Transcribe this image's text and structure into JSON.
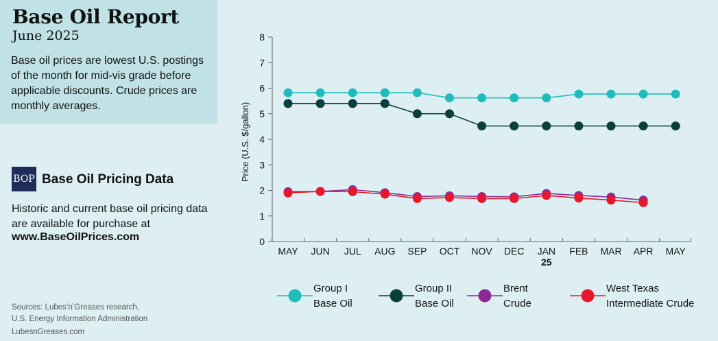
{
  "header": {
    "title": "Base Oil Report",
    "subtitle": "June 2025",
    "description": "Base oil prices are lowest U.S. postings of the month for mid-vis grade before applicable discounts. Crude prices are monthly averages."
  },
  "promo": {
    "badge": "BOP",
    "heading": "Base Oil Pricing Data",
    "text": "Historic and current base oil pricing data are available for purchase at",
    "url": "www.BaseOilPrices.com"
  },
  "footer": {
    "sources_line1": "Sources: Lubes’n’Greases research,",
    "sources_line2": "U.S. Energy Information Administration",
    "site": "LubesnGreases.com"
  },
  "colors": {
    "group1": "#1fbcbc",
    "group2": "#0b3f3d",
    "brent": "#8c2c93",
    "wti": "#e8182c"
  },
  "chart_data": {
    "type": "line",
    "ylabel": "Price (U.S. $/gallon)",
    "xlabel": "",
    "ylim": [
      0,
      8
    ],
    "yticks": [
      0,
      1,
      2,
      3,
      4,
      5,
      6,
      7,
      8
    ],
    "grid": false,
    "legend_position": "bottom",
    "categories": [
      "MAY",
      "JUN",
      "JUL",
      "AUG",
      "SEP",
      "OCT",
      "NOV",
      "DEC",
      "JAN",
      "FEB",
      "MAR",
      "APR",
      "MAY"
    ],
    "year_marker": {
      "category_index": 8,
      "label": "25"
    },
    "series": [
      {
        "name": "Group I Base Oil",
        "legend_lines": [
          "Group I",
          "Base Oil"
        ],
        "color_key": "group1",
        "values": [
          5.82,
          5.82,
          5.82,
          5.82,
          5.82,
          5.62,
          5.62,
          5.62,
          5.62,
          5.77,
          5.77,
          5.77,
          5.77
        ]
      },
      {
        "name": "Group II Base Oil",
        "legend_lines": [
          "Group II",
          "Base Oil"
        ],
        "color_key": "group2",
        "values": [
          5.4,
          5.4,
          5.4,
          5.4,
          5.0,
          5.0,
          4.52,
          4.52,
          4.52,
          4.52,
          4.52,
          4.52,
          4.52
        ]
      },
      {
        "name": "Brent Crude",
        "legend_lines": [
          "Brent",
          "Crude"
        ],
        "color_key": "brent",
        "values": [
          1.95,
          1.96,
          2.03,
          1.91,
          1.76,
          1.79,
          1.76,
          1.75,
          1.88,
          1.8,
          1.74,
          1.62,
          null
        ]
      },
      {
        "name": "West Texas Intermediate Crude",
        "legend_lines": [
          "West Texas",
          "Intermediate Crude"
        ],
        "color_key": "wti",
        "values": [
          1.9,
          1.96,
          1.95,
          1.85,
          1.68,
          1.72,
          1.68,
          1.68,
          1.8,
          1.7,
          1.62,
          1.52,
          null
        ]
      }
    ]
  }
}
